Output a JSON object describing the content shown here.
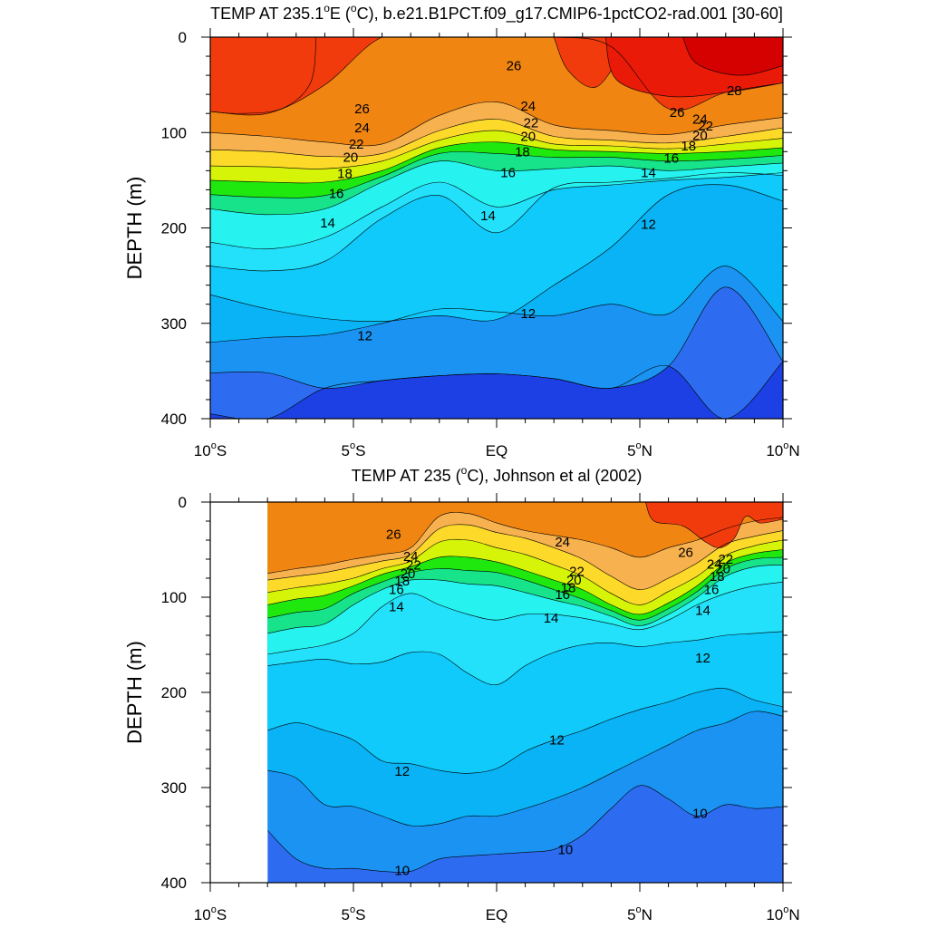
{
  "chart_data": [
    {
      "type": "contour",
      "title": "TEMP AT 235.1°E (°C), b.e21.B1PCT.f09_g17.CMIP6-1pctCO2-rad.001 [30-60]",
      "title_main": "TEMP AT 235.1",
      "title_sup": "o",
      "title_rest": "E (",
      "title_sup2": "o",
      "title_end": "C), b.e21.B1PCT.f09_g17.CMIP6-1pctCO2-rad.001 [30-60]",
      "xlabel": "",
      "ylabel": "DEPTH (m)",
      "xlim": [
        -10,
        10
      ],
      "ylim": [
        400,
        0
      ],
      "x_ticks": [
        -10,
        -5,
        0,
        5,
        10
      ],
      "x_tick_labels": [
        [
          "10",
          "o",
          "S"
        ],
        [
          "5",
          "o",
          "S"
        ],
        [
          "EQ",
          "",
          ""
        ],
        [
          "5",
          "o",
          "N"
        ],
        [
          "10",
          "o",
          "N"
        ]
      ],
      "y_ticks": [
        0,
        100,
        200,
        300,
        400
      ],
      "y_tick_labels": [
        "0",
        "100",
        "200",
        "300",
        "400"
      ],
      "data_x_start": -10,
      "contour_interval": 1,
      "isotherm_depths": [
        {
          "x": -10,
          "d": {
            "28": 78,
            "26": 100,
            "24": 118,
            "22": 135,
            "20": 150,
            "18": 165,
            "16": 180,
            "14": 215,
            "13": 240,
            "12": 270,
            "11": 320,
            "10": 352,
            "9": 395
          }
        },
        {
          "x": -8,
          "d": {
            "28": 80,
            "26": 104,
            "24": 120,
            "22": 136,
            "20": 152,
            "18": 168,
            "16": 186,
            "14": 222,
            "13": 245,
            "12": 285,
            "11": 315,
            "10": 352,
            "9": 400
          }
        },
        {
          "x": -6,
          "d": {
            "28": 50,
            "26": 110,
            "24": 125,
            "22": 138,
            "20": 152,
            "18": 166,
            "16": 180,
            "14": 210,
            "13": 235,
            "12": 295,
            "11": 312,
            "10": 368
          }
        },
        {
          "x": -4,
          "d": {
            "28": 0,
            "26": 112,
            "24": 122,
            "22": 130,
            "20": 140,
            "18": 146,
            "16": 152,
            "14": 178,
            "13": 190,
            "12": 298,
            "11": 300,
            "10": 360
          }
        },
        {
          "x": -2,
          "d": {
            "28": 0,
            "26": 82,
            "24": 98,
            "22": 108,
            "20": 116,
            "18": 122,
            "16": 130,
            "14": 152,
            "13": 166,
            "12": 292,
            "11": 285,
            "10": 355
          }
        },
        {
          "x": 0,
          "d": {
            "28": 0,
            "26": 68,
            "24": 86,
            "22": 98,
            "20": 110,
            "18": 122,
            "16": 140,
            "14": 178,
            "13": 205,
            "12": 296,
            "11": 288,
            "10": 353
          }
        },
        {
          "x": 2,
          "d": {
            "28": 0,
            "26": 92,
            "24": 104,
            "22": 112,
            "20": 118,
            "18": 126,
            "16": 138,
            "14": 160,
            "13": 158,
            "12": 260,
            "11": 292,
            "10": 358
          }
        },
        {
          "x": 4,
          "d": {
            "28": 10,
            "26": 98,
            "24": 108,
            "22": 114,
            "20": 120,
            "18": 126,
            "16": 135,
            "14": 155,
            "13": 152,
            "12": 220,
            "11": 280,
            "10": 368
          }
        },
        {
          "x": 6,
          "d": {
            "28": 75,
            "26": 102,
            "24": 111,
            "22": 117,
            "20": 122,
            "18": 130,
            "16": 140,
            "14": 150,
            "13": 148,
            "12": 165,
            "11": 290,
            "10": 345
          }
        },
        {
          "x": 8,
          "d": {
            "28": 58,
            "26": 92,
            "24": 104,
            "22": 112,
            "20": 120,
            "18": 128,
            "16": 136,
            "14": 147,
            "13": 142,
            "12": 155,
            "11": 240,
            "10": 262,
            "9": 400
          }
        },
        {
          "x": 10,
          "d": {
            "28": 48,
            "26": 84,
            "24": 95,
            "22": 106,
            "20": 116,
            "18": 124,
            "16": 132,
            "14": 142,
            "13": 145,
            "12": 172,
            "11": 298,
            "10": 340
          }
        }
      ],
      "surface_warm_patches": [
        {
          "level": 28,
          "x": [
            -10,
            -9,
            -7.5,
            -6.5,
            -6.3
          ],
          "d_bottom": [
            78,
            80,
            75,
            48,
            0
          ]
        },
        {
          "level": 28,
          "x": [
            2,
            2.5,
            3.5,
            4.5
          ],
          "d_bottom": [
            0,
            35,
            52,
            10
          ],
          "close_to_surface": true
        },
        {
          "level": 29,
          "x": [
            3.8,
            4.2,
            6,
            8,
            10
          ],
          "d_bottom": [
            0,
            45,
            62,
            58,
            48
          ]
        },
        {
          "level": 30,
          "x": [
            6.5,
            7,
            8.5,
            10
          ],
          "d_bottom": [
            0,
            28,
            40,
            30
          ]
        }
      ],
      "contour_labels": [
        {
          "text": "26",
          "x": 0.6,
          "d": 30
        },
        {
          "text": "26",
          "x": -4.7,
          "d": 75
        },
        {
          "text": "24",
          "x": -4.7,
          "d": 95
        },
        {
          "text": "22",
          "x": -4.9,
          "d": 112
        },
        {
          "text": "20",
          "x": -5.1,
          "d": 126
        },
        {
          "text": "18",
          "x": -5.3,
          "d": 143
        },
        {
          "text": "16",
          "x": -5.6,
          "d": 164
        },
        {
          "text": "14",
          "x": -5.9,
          "d": 195
        },
        {
          "text": "24",
          "x": 1.1,
          "d": 72
        },
        {
          "text": "22",
          "x": 1.2,
          "d": 90
        },
        {
          "text": "20",
          "x": 1.1,
          "d": 104
        },
        {
          "text": "18",
          "x": 0.9,
          "d": 120
        },
        {
          "text": "16",
          "x": 0.4,
          "d": 142
        },
        {
          "text": "14",
          "x": -0.3,
          "d": 187
        },
        {
          "text": "28",
          "x": 8.3,
          "d": 56
        },
        {
          "text": "26",
          "x": 6.3,
          "d": 79
        },
        {
          "text": "24",
          "x": 7.1,
          "d": 86
        },
        {
          "text": "22",
          "x": 7.3,
          "d": 93
        },
        {
          "text": "20",
          "x": 7.1,
          "d": 103
        },
        {
          "text": "18",
          "x": 6.7,
          "d": 114
        },
        {
          "text": "16",
          "x": 6.1,
          "d": 127
        },
        {
          "text": "14",
          "x": 5.3,
          "d": 142
        },
        {
          "text": "12",
          "x": 5.3,
          "d": 196
        },
        {
          "text": "12",
          "x": 1.1,
          "d": 290
        },
        {
          "text": "12",
          "x": -4.6,
          "d": 313
        }
      ]
    },
    {
      "type": "contour",
      "title": "TEMP AT 235 (°C), Johnson et al (2002)",
      "title_main": "TEMP AT 235 (",
      "title_sup": "o",
      "title_end": "C), Johnson et al (2002)",
      "xlabel": "",
      "ylabel": "DEPTH (m)",
      "xlim": [
        -10,
        10
      ],
      "ylim": [
        400,
        0
      ],
      "x_ticks": [
        -10,
        -5,
        0,
        5,
        10
      ],
      "x_tick_labels": [
        [
          "10",
          "o",
          "S"
        ],
        [
          "5",
          "o",
          "S"
        ],
        [
          "EQ",
          "",
          ""
        ],
        [
          "5",
          "o",
          "N"
        ],
        [
          "10",
          "o",
          "N"
        ]
      ],
      "y_ticks": [
        0,
        100,
        200,
        300,
        400
      ],
      "y_tick_labels": [
        "0",
        "100",
        "200",
        "300",
        "400"
      ],
      "data_x_start": -8,
      "contour_interval": 1,
      "isotherm_depths": [
        {
          "x": -8,
          "d": {
            "26": 75,
            "24": 82,
            "22": 95,
            "20": 108,
            "18": 122,
            "16": 138,
            "14": 160,
            "13": 172,
            "12": 240,
            "11": 282,
            "10": 345
          }
        },
        {
          "x": -7,
          "d": {
            "26": 70,
            "24": 78,
            "22": 90,
            "20": 102,
            "18": 116,
            "16": 132,
            "14": 155,
            "13": 168,
            "12": 232,
            "11": 290,
            "10": 375
          }
        },
        {
          "x": -6,
          "d": {
            "26": 66,
            "24": 74,
            "22": 86,
            "20": 98,
            "18": 112,
            "16": 128,
            "14": 150,
            "13": 165,
            "12": 240,
            "11": 318,
            "10": 385
          }
        },
        {
          "x": -5,
          "d": {
            "26": 60,
            "24": 68,
            "22": 80,
            "20": 88,
            "18": 96,
            "16": 108,
            "14": 138,
            "13": 170,
            "12": 250,
            "11": 320,
            "10": 385
          }
        },
        {
          "x": -4,
          "d": {
            "26": 55,
            "24": 62,
            "22": 70,
            "20": 76,
            "18": 84,
            "16": 92,
            "14": 110,
            "13": 168,
            "12": 272,
            "11": 330,
            "10": 388
          }
        },
        {
          "x": -3,
          "d": {
            "26": 48,
            "24": 55,
            "22": 62,
            "20": 68,
            "18": 74,
            "16": 82,
            "14": 96,
            "13": 158,
            "12": 275,
            "11": 340,
            "10": 388
          }
        },
        {
          "x": -2,
          "d": {
            "26": 15,
            "24": 28,
            "22": 42,
            "20": 58,
            "18": 70,
            "16": 82,
            "14": 108,
            "13": 160,
            "12": 282,
            "11": 338,
            "10": 375
          }
        },
        {
          "x": -1,
          "d": {
            "26": 12,
            "24": 24,
            "22": 40,
            "20": 58,
            "18": 72,
            "16": 86,
            "14": 118,
            "13": 180,
            "12": 285,
            "11": 330,
            "10": 372
          }
        },
        {
          "x": 0,
          "d": {
            "26": 22,
            "24": 32,
            "22": 48,
            "20": 63,
            "18": 74,
            "16": 88,
            "14": 124,
            "13": 192,
            "12": 280,
            "11": 330,
            "10": 370
          }
        },
        {
          "x": 1,
          "d": {
            "26": 30,
            "24": 38,
            "22": 55,
            "20": 72,
            "18": 82,
            "16": 95,
            "14": 118,
            "13": 172,
            "12": 262,
            "11": 322,
            "10": 368
          }
        },
        {
          "x": 2,
          "d": {
            "26": 35,
            "24": 48,
            "22": 66,
            "20": 82,
            "18": 92,
            "16": 103,
            "14": 118,
            "13": 158,
            "12": 250,
            "11": 312,
            "10": 365
          }
        },
        {
          "x": 3,
          "d": {
            "26": 40,
            "24": 60,
            "22": 78,
            "20": 92,
            "18": 102,
            "16": 110,
            "14": 122,
            "13": 150,
            "12": 240,
            "11": 300,
            "10": 350
          }
        },
        {
          "x": 4,
          "d": {
            "26": 48,
            "24": 78,
            "22": 96,
            "20": 108,
            "18": 114,
            "16": 120,
            "14": 128,
            "13": 148,
            "12": 228,
            "11": 285,
            "10": 322
          }
        },
        {
          "x": 5,
          "d": {
            "26": 58,
            "24": 92,
            "22": 108,
            "20": 118,
            "18": 124,
            "16": 130,
            "14": 134,
            "13": 152,
            "12": 218,
            "11": 270,
            "10": 298
          }
        },
        {
          "x": 6,
          "d": {
            "26": 48,
            "24": 80,
            "22": 94,
            "20": 106,
            "18": 112,
            "16": 118,
            "14": 124,
            "13": 148,
            "12": 210,
            "11": 255,
            "10": 312
          }
        },
        {
          "x": 7,
          "d": {
            "26": 40,
            "24": 64,
            "22": 78,
            "20": 88,
            "18": 94,
            "16": 100,
            "14": 108,
            "13": 145,
            "12": 200,
            "11": 240,
            "10": 330
          }
        },
        {
          "x": 8,
          "d": {
            "26": 28,
            "24": 44,
            "22": 56,
            "20": 64,
            "18": 70,
            "16": 78,
            "14": 96,
            "13": 140,
            "12": 196,
            "11": 232,
            "10": 318
          }
        },
        {
          "x": 9,
          "d": {
            "26": 20,
            "24": 36,
            "22": 46,
            "20": 54,
            "18": 60,
            "16": 68,
            "14": 88,
            "13": 138,
            "12": 208,
            "11": 220,
            "10": 322
          }
        },
        {
          "x": 10,
          "d": {
            "26": 16,
            "24": 30,
            "22": 40,
            "20": 50,
            "18": 58,
            "16": 66,
            "14": 84,
            "13": 136,
            "12": 215,
            "11": 225,
            "10": 320
          }
        }
      ],
      "surface_warm_patches": [
        {
          "level": 28,
          "x": [
            5.2,
            5.5,
            6.5,
            7.3,
            7.8,
            8.3,
            8.7,
            9.2,
            10
          ],
          "d_bottom": [
            0,
            20,
            25,
            42,
            48,
            38,
            15,
            22,
            18
          ]
        }
      ],
      "contour_labels": [
        {
          "text": "26",
          "x": -3.6,
          "d": 34
        },
        {
          "text": "24",
          "x": -3.0,
          "d": 57
        },
        {
          "text": "22",
          "x": -2.9,
          "d": 66
        },
        {
          "text": "20",
          "x": -3.1,
          "d": 75
        },
        {
          "text": "18",
          "x": -3.3,
          "d": 83
        },
        {
          "text": "16",
          "x": -3.5,
          "d": 92
        },
        {
          "text": "14",
          "x": -3.5,
          "d": 110
        },
        {
          "text": "24",
          "x": 2.3,
          "d": 42
        },
        {
          "text": "22",
          "x": 2.8,
          "d": 73
        },
        {
          "text": "20",
          "x": 2.7,
          "d": 82
        },
        {
          "text": "18",
          "x": 2.5,
          "d": 90
        },
        {
          "text": "16",
          "x": 2.3,
          "d": 97
        },
        {
          "text": "14",
          "x": 1.9,
          "d": 122
        },
        {
          "text": "26",
          "x": 6.6,
          "d": 53
        },
        {
          "text": "24",
          "x": 7.6,
          "d": 65
        },
        {
          "text": "22",
          "x": 8.0,
          "d": 60
        },
        {
          "text": "20",
          "x": 7.9,
          "d": 70
        },
        {
          "text": "18",
          "x": 7.7,
          "d": 78
        },
        {
          "text": "16",
          "x": 7.5,
          "d": 92
        },
        {
          "text": "14",
          "x": 7.2,
          "d": 114
        },
        {
          "text": "12",
          "x": 7.2,
          "d": 164
        },
        {
          "text": "12",
          "x": 2.1,
          "d": 250
        },
        {
          "text": "12",
          "x": -3.3,
          "d": 283
        },
        {
          "text": "10",
          "x": 7.1,
          "d": 327
        },
        {
          "text": "10",
          "x": 2.4,
          "d": 365
        },
        {
          "text": "10",
          "x": -3.3,
          "d": 387
        }
      ]
    }
  ],
  "palette": {
    "above_30": "#d50000",
    "29": "#ea1a08",
    "28": "#f23b0c",
    "27": "#f46417",
    "26": "#f08512",
    "25": "#f5a23c",
    "24": "#f7b14f",
    "23": "#ffc43c",
    "22": "#fdd92a",
    "21": "#f6f30e",
    "20": "#d6f407",
    "19": "#89f005",
    "18": "#1fe80f",
    "17": "#19d24f",
    "16": "#16e38a",
    "15": "#1ee3c0",
    "14": "#26f2f0",
    "13": "#23e1fb",
    "12": "#0fcafa",
    "11": "#09b3f5",
    "10": "#1a93f2",
    "9": "#2d6cf0",
    "8": "#1d40e5"
  },
  "colors": {
    "contour_line": "#000000",
    "axis": "#000000",
    "background": "#ffffff"
  }
}
